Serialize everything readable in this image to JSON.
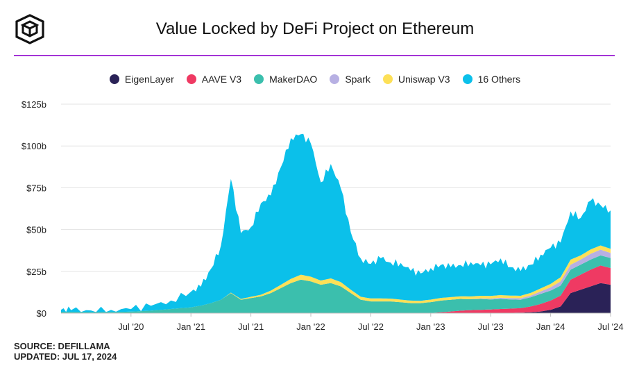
{
  "header": {
    "title": "Value Locked by DeFi Project on Ethereum",
    "accent_color": "#a334d6"
  },
  "footer": {
    "source": "SOURCE: DEFILLAMA",
    "updated": "UPDATED: JUL 17, 2024"
  },
  "chart_data": {
    "type": "area",
    "stacked": true,
    "legend_position": "top-center",
    "grid": true,
    "ylim": [
      0,
      125
    ],
    "y_ticks": [
      0,
      25,
      50,
      75,
      100,
      125
    ],
    "y_tick_labels": [
      "$0",
      "$25b",
      "$50b",
      "$75b",
      "$100b",
      "$125b"
    ],
    "x_ticks": [
      "2020-07",
      "2021-01",
      "2021-07",
      "2022-01",
      "2022-07",
      "2023-01",
      "2023-07",
      "2024-01",
      "2024-07"
    ],
    "x_tick_labels": [
      "Jul '20",
      "Jan '21",
      "Jul '21",
      "Jan '22",
      "Jul '22",
      "Jan '23",
      "Jul '23",
      "Jan '24",
      "Jul '24"
    ],
    "x": [
      "2019-12",
      "2020-01",
      "2020-03",
      "2020-05",
      "2020-07",
      "2020-09",
      "2020-11",
      "2021-01",
      "2021-02",
      "2021-03",
      "2021-04",
      "2021-05",
      "2021-06",
      "2021-07",
      "2021-08",
      "2021-09",
      "2021-10",
      "2021-11",
      "2021-12",
      "2022-01",
      "2022-02",
      "2022-03",
      "2022-04",
      "2022-05",
      "2022-06",
      "2022-07",
      "2022-08",
      "2022-09",
      "2022-10",
      "2022-11",
      "2022-12",
      "2023-01",
      "2023-02",
      "2023-03",
      "2023-04",
      "2023-05",
      "2023-06",
      "2023-07",
      "2023-08",
      "2023-09",
      "2023-10",
      "2023-11",
      "2023-12",
      "2024-01",
      "2024-02",
      "2024-03",
      "2024-04",
      "2024-05",
      "2024-06",
      "2024-07"
    ],
    "series": [
      {
        "name": "EigenLayer",
        "color": "#2a2257",
        "values": [
          0,
          0,
          0,
          0,
          0,
          0,
          0,
          0,
          0,
          0,
          0,
          0,
          0,
          0,
          0,
          0,
          0,
          0,
          0,
          0,
          0,
          0,
          0,
          0,
          0,
          0,
          0,
          0,
          0,
          0,
          0,
          0,
          0,
          0,
          0,
          0,
          0,
          0,
          0.1,
          0.2,
          0.3,
          0.5,
          1,
          2,
          4,
          12,
          14,
          16,
          18,
          17
        ]
      },
      {
        "name": "AAVE V3",
        "color": "#ef3a63",
        "values": [
          0,
          0,
          0,
          0,
          0,
          0,
          0,
          0,
          0,
          0,
          0,
          0,
          0,
          0,
          0,
          0,
          0,
          0,
          0,
          0,
          0,
          0,
          0,
          0,
          0,
          0,
          0,
          0,
          0,
          0,
          0,
          0.1,
          0.5,
          1,
          1.5,
          1.8,
          2,
          2.2,
          2.4,
          2.5,
          2.7,
          3.5,
          4.5,
          5.5,
          6.5,
          8,
          9,
          10,
          10.5,
          10
        ]
      },
      {
        "name": "MakerDAO",
        "color": "#3bbfad",
        "values": [
          0.8,
          0.7,
          0.6,
          0.7,
          0.9,
          1.5,
          2.5,
          3.5,
          4.5,
          6,
          8,
          12,
          8,
          9,
          10,
          12,
          15,
          18,
          20,
          19,
          17,
          18,
          16,
          12,
          8,
          7,
          7,
          7,
          6.5,
          6,
          6,
          6.5,
          7,
          7,
          7,
          6.5,
          6.5,
          6,
          6,
          5.5,
          5,
          5.5,
          6,
          6,
          6,
          6,
          6,
          6,
          6,
          6
        ]
      },
      {
        "name": "Spark",
        "color": "#b7b0e3",
        "values": [
          0,
          0,
          0,
          0,
          0,
          0,
          0,
          0,
          0,
          0,
          0,
          0,
          0,
          0,
          0,
          0,
          0,
          0,
          0,
          0,
          0,
          0,
          0,
          0,
          0,
          0,
          0,
          0,
          0,
          0,
          0,
          0,
          0,
          0,
          0,
          0.1,
          0.3,
          0.5,
          0.7,
          0.8,
          0.9,
          1,
          1.5,
          2,
          2.5,
          3,
          3,
          3.5,
          3.5,
          3
        ]
      },
      {
        "name": "Uniswap V3",
        "color": "#fde057",
        "values": [
          0,
          0,
          0,
          0,
          0,
          0,
          0,
          0,
          0,
          0,
          0,
          0.3,
          0.5,
          0.8,
          1,
          1.5,
          2,
          2.5,
          3,
          2.8,
          2.5,
          2.8,
          2.6,
          2,
          1.8,
          1.8,
          1.8,
          1.7,
          1.6,
          1.5,
          1.4,
          1.5,
          1.6,
          1.6,
          1.6,
          1.6,
          1.6,
          1.6,
          1.6,
          1.5,
          1.5,
          1.6,
          1.8,
          2,
          2.5,
          3,
          2.5,
          2.6,
          2.5,
          2.5
        ]
      },
      {
        "name": "16 Others",
        "color": "#0bc0ea",
        "values": [
          1.2,
          1.1,
          1,
          1.2,
          1.5,
          3,
          5,
          9,
          12,
          20,
          32,
          68,
          40,
          42,
          52,
          60,
          70,
          82,
          85,
          80,
          60,
          65,
          58,
          35,
          22,
          21,
          24,
          22,
          21,
          18,
          17,
          18,
          20,
          18,
          19,
          20,
          18,
          20,
          21,
          17,
          15,
          17,
          20,
          21,
          22,
          28,
          22,
          30,
          24,
          23
        ]
      }
    ]
  }
}
